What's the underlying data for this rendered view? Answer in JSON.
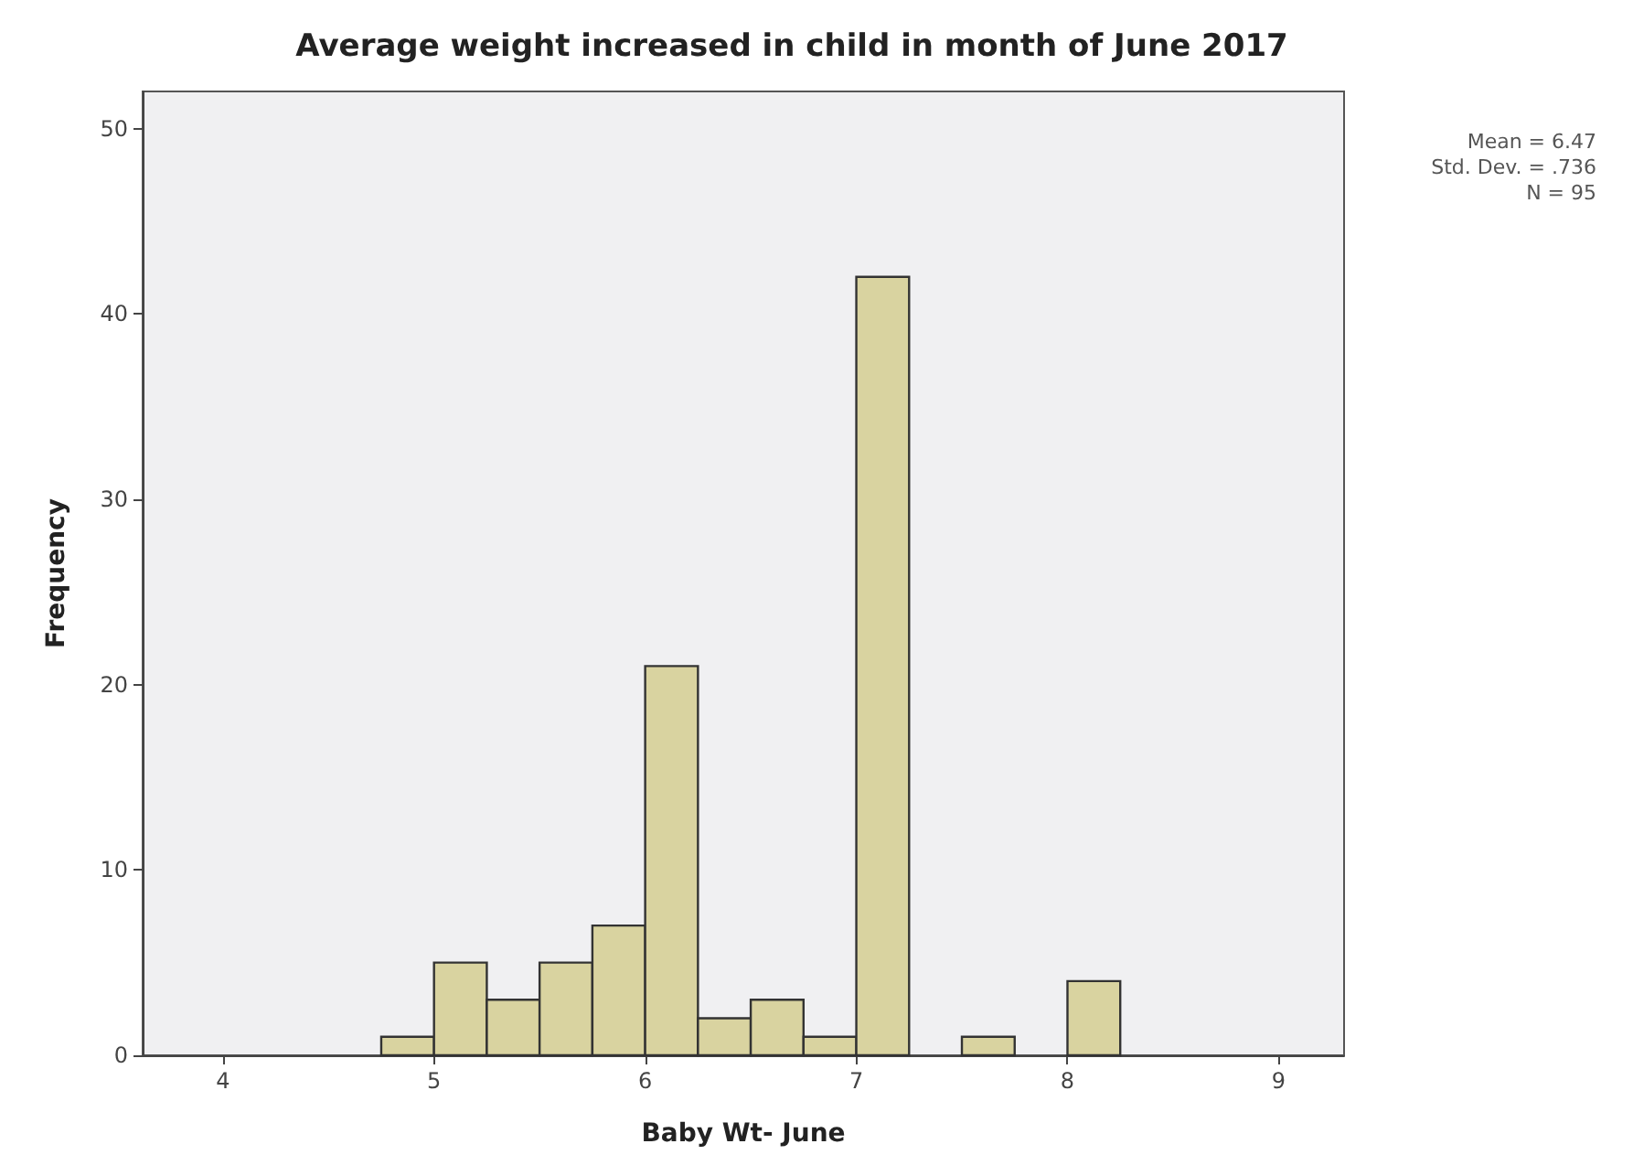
{
  "chart_data": {
    "type": "histogram",
    "title": "Average weight increased in child in month of June 2017",
    "xlabel": "Baby Wt- June",
    "ylabel": "Frequency",
    "bins": [
      4.75,
      5,
      5.25,
      5.5,
      5.75,
      6,
      6.25,
      6.5,
      6.75,
      7,
      7.25,
      7.5,
      7.75,
      8,
      8.25
    ],
    "values": [
      1,
      5,
      3,
      5,
      7,
      21,
      2,
      3,
      1,
      42,
      0,
      1,
      0,
      4
    ],
    "color": "#d9d3a0",
    "xlim": [
      3.62,
      9.31
    ],
    "xticks": [
      4,
      5,
      6,
      7,
      8,
      9
    ],
    "ylim": [
      0,
      52
    ],
    "yticks": [
      0,
      10,
      20,
      30,
      40,
      50
    ],
    "annotations": [
      "Mean = 6.47",
      "Std. Dev. = .736",
      "N = 95"
    ],
    "grid": false
  }
}
